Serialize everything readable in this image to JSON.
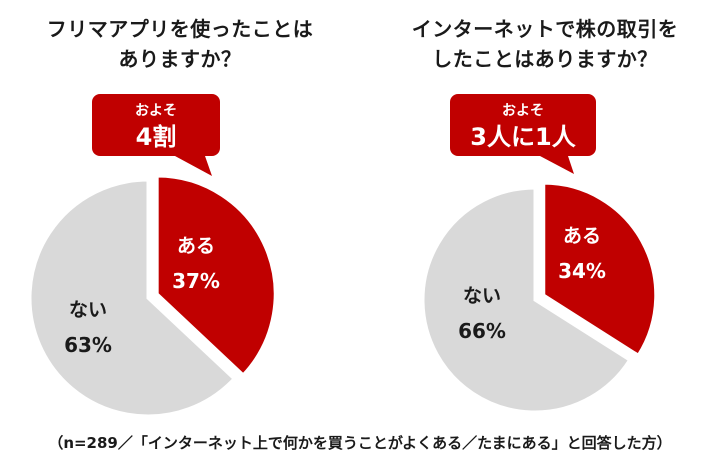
{
  "colors": {
    "yes": "#c00000",
    "no": "#d9d9d9",
    "callout": "#c00000",
    "text_dark": "#1a1a1a",
    "text_light": "#ffffff"
  },
  "footnote": "（n=289／「インターネット上で何かを買うことがよくある／たまにある」と回答した方）",
  "chart_data": [
    {
      "type": "pie",
      "title_lines": [
        "フリマアプリを使ったことは",
        "ありますか？"
      ],
      "callout": {
        "line1": "およそ",
        "line2": "4割"
      },
      "slices": [
        {
          "label": "ある",
          "value": 37,
          "pct": "37%",
          "color": "#c00000",
          "exploded": true
        },
        {
          "label": "ない",
          "value": 63,
          "pct": "63%",
          "color": "#d9d9d9",
          "exploded": false
        }
      ]
    },
    {
      "type": "pie",
      "title_lines": [
        "インターネットで株の取引を",
        "したことはありますか？"
      ],
      "callout": {
        "line1": "およそ",
        "line2": "3人に1人"
      },
      "slices": [
        {
          "label": "ある",
          "value": 34,
          "pct": "34%",
          "color": "#c00000",
          "exploded": true
        },
        {
          "label": "ない",
          "value": 66,
          "pct": "66%",
          "color": "#d9d9d9",
          "exploded": false
        }
      ]
    }
  ]
}
